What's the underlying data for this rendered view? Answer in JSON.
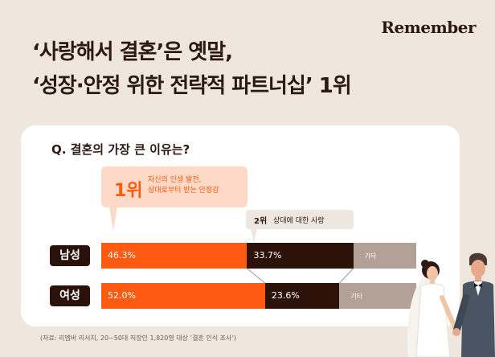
{
  "brand": "Remember",
  "headline": {
    "line1": "‘사랑해서 결혼’은 옛말,",
    "line2": "‘성장·안정 위한 전략적 파트너십’ 1위"
  },
  "question": "Q. 결혼의 가장 큰 이유는?",
  "callouts": {
    "first": {
      "rank": "1위",
      "line1": "자신의 인생 발전,",
      "line2": "상대로부터 받는 안정감"
    },
    "second": {
      "rank": "2위",
      "text": "상대에 대한 사랑"
    }
  },
  "colors": {
    "first": "#ff5a12",
    "second": "#2d1209",
    "other": "#b3a096",
    "label_bg": "#2a1109",
    "background": "#efe7de"
  },
  "chart_data": {
    "type": "bar",
    "orientation": "horizontal",
    "stacked": true,
    "categories": [
      "남성",
      "여성"
    ],
    "series": [
      {
        "name": "자신의 인생 발전, 상대로부터 받는 안정감",
        "values": [
          46.3,
          52.0
        ],
        "labels": [
          "46.3%",
          "52.0%"
        ]
      },
      {
        "name": "상대에 대한 사랑",
        "values": [
          33.7,
          23.6
        ],
        "labels": [
          "33.7%",
          "23.6%"
        ]
      },
      {
        "name": "기타",
        "values": [
          20.0,
          24.4
        ],
        "labels": [
          "기타",
          "기타"
        ]
      }
    ],
    "xlim": [
      0,
      100
    ],
    "title": "",
    "xlabel": "",
    "ylabel": ""
  },
  "source": "(자료: 리멤버 리서치, 20~50대 직장인 1,820명 대상 ‘결혼 인식 조사’)"
}
